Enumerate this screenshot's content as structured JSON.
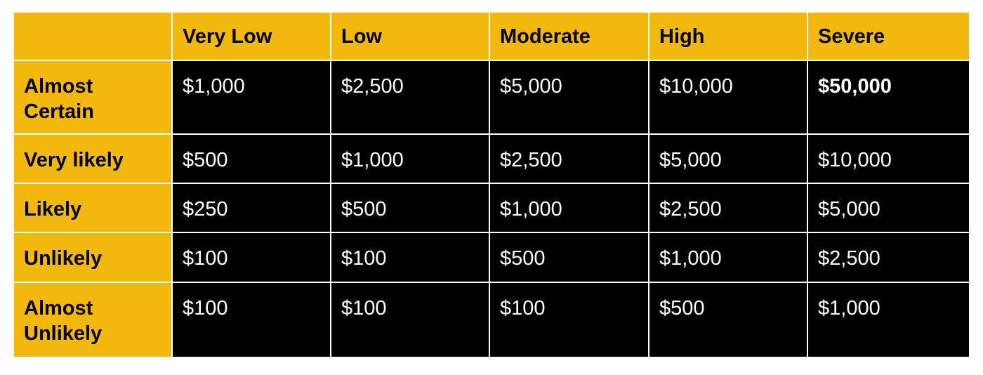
{
  "table": {
    "columns": [
      "",
      "Very Low",
      "Low",
      "Moderate",
      "High",
      "Severe"
    ],
    "rows": [
      {
        "label": "Almost Certain",
        "values": [
          "$1,000",
          "$2,500",
          "$5,000",
          "$10,000",
          "$50,000"
        ]
      },
      {
        "label": "Very likely",
        "values": [
          "$500",
          "$1,000",
          "$2,500",
          "$5,000",
          "$10,000"
        ]
      },
      {
        "label": "Likely",
        "values": [
          "$250",
          "$500",
          "$1,000",
          "$2,500",
          "$5,000"
        ]
      },
      {
        "label": "Unlikely",
        "values": [
          "$100",
          "$100",
          "$500",
          "$1,000",
          "$2,500"
        ]
      },
      {
        "label": "Almost Unlikely",
        "values": [
          "$100",
          "$100",
          "$100",
          "$500",
          "$1,000"
        ]
      }
    ],
    "bold_cells": [
      "$50,000"
    ],
    "colors": {
      "header": "#F1B80E",
      "value_bg": "#000000",
      "value_text": "#FFFFFF",
      "grid": "#FFFFFF"
    }
  }
}
